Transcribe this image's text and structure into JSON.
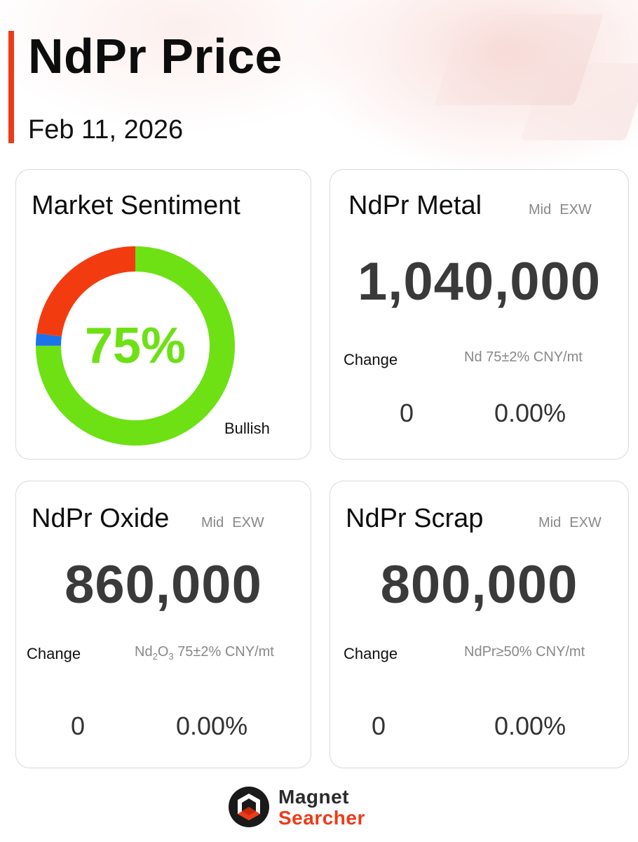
{
  "header": {
    "title": "NdPr Price",
    "date": "Feb 11, 2026"
  },
  "sentiment": {
    "title": "Market Sentiment",
    "percent_label": "75%",
    "label": "Bullish"
  },
  "chart_data": {
    "type": "pie",
    "title": "Market Sentiment",
    "center_label": "75%",
    "slices": [
      {
        "value": 75,
        "color": "#6de113"
      },
      {
        "value": 2,
        "color": "#1a73e8"
      },
      {
        "value": 23,
        "color": "#f23c10"
      }
    ],
    "annotations": [
      "Bullish"
    ]
  },
  "cards": {
    "metal": {
      "title": "NdPr Metal",
      "tag_mid": "Mid",
      "tag_exw": "EXW",
      "price": "1,040,000",
      "change_label": "Change",
      "spec": "Nd 75±2% CNY/mt",
      "change_abs": "0",
      "change_pct": "0.00%"
    },
    "oxide": {
      "title": "NdPr Oxide",
      "tag_mid": "Mid",
      "tag_exw": "EXW",
      "price": "860,000",
      "change_label": "Change",
      "spec_prefix": "Nd",
      "spec_sub1": "2",
      "spec_mid": "O",
      "spec_sub2": "3",
      "spec_suffix": " 75±2% CNY/mt",
      "change_abs": "0",
      "change_pct": "0.00%"
    },
    "scrap": {
      "title": "NdPr Scrap",
      "tag_mid": "Mid",
      "tag_exw": "EXW",
      "price": "800,000",
      "change_label": "Change",
      "spec": "NdPr≥50% CNY/mt",
      "change_abs": "0",
      "change_pct": "0.00%"
    }
  },
  "brand": {
    "line1": "Magnet",
    "line2": "Searcher",
    "logo_icon": "magnet-searcher-logo-icon"
  },
  "colors": {
    "accent": "#ee3a17",
    "bullish_green": "#6de113",
    "bearish_red": "#f23c10",
    "neutral_blue": "#1a73e8",
    "price_gray": "#3a3a3a"
  }
}
